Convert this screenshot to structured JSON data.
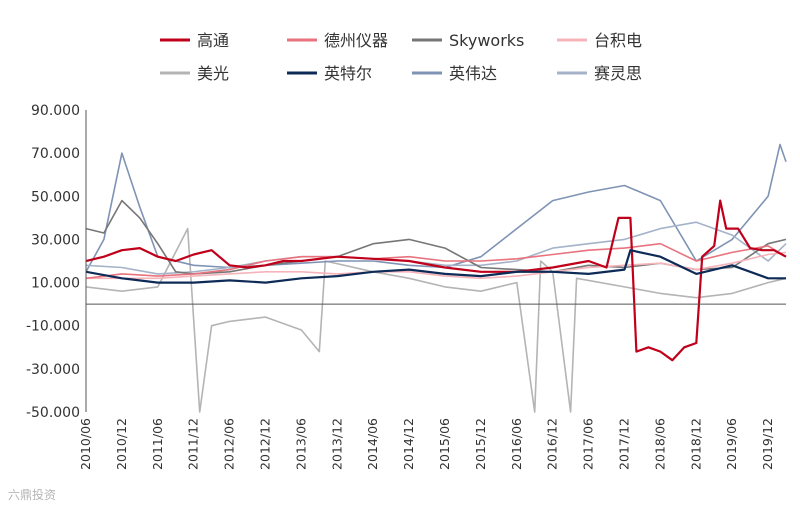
{
  "chart_data": {
    "type": "line",
    "title": "",
    "xlabel": "",
    "ylabel": "",
    "ylim": [
      -50,
      90
    ],
    "y_ticks": [
      "90.000",
      "70.000",
      "50.000",
      "30.000",
      "10.000",
      "-10.000",
      "-30.000",
      "-50.000"
    ],
    "y_tick_values": [
      90,
      70,
      50,
      30,
      10,
      -10,
      -30,
      -50
    ],
    "x_ticks": [
      "2010/06",
      "2010/12",
      "2011/06",
      "2011/12",
      "2012/06",
      "2012/12",
      "2013/06",
      "2013/12",
      "2014/06",
      "2014/12",
      "2015/06",
      "2015/12",
      "2016/06",
      "2016/12",
      "2017/06",
      "2017/12",
      "2018/06",
      "2018/12",
      "2019/06",
      "2019/12"
    ],
    "x_range": [
      "2010/06",
      "2020/03"
    ],
    "grid": false,
    "legend_position": "top",
    "series": [
      {
        "name": "高通",
        "color": "#c0001b",
        "width": 2.2,
        "points": [
          [
            "2010/06",
            20
          ],
          [
            "2010/09",
            22
          ],
          [
            "2010/12",
            25
          ],
          [
            "2011/03",
            26
          ],
          [
            "2011/06",
            22
          ],
          [
            "2011/09",
            20
          ],
          [
            "2011/12",
            23
          ],
          [
            "2012/03",
            25
          ],
          [
            "2012/06",
            18
          ],
          [
            "2012/09",
            17
          ],
          [
            "2012/12",
            18
          ],
          [
            "2013/03",
            20
          ],
          [
            "2013/06",
            20
          ],
          [
            "2013/12",
            22
          ],
          [
            "2014/06",
            21
          ],
          [
            "2014/12",
            20
          ],
          [
            "2015/06",
            17
          ],
          [
            "2015/12",
            15
          ],
          [
            "2016/06",
            15
          ],
          [
            "2016/12",
            17
          ],
          [
            "2017/06",
            20
          ],
          [
            "2017/09",
            17
          ],
          [
            "2017/11",
            40
          ],
          [
            "2018/01",
            40
          ],
          [
            "2018/02",
            -22
          ],
          [
            "2018/04",
            -20
          ],
          [
            "2018/06",
            -22
          ],
          [
            "2018/08",
            -26
          ],
          [
            "2018/10",
            -20
          ],
          [
            "2018/12",
            -18
          ],
          [
            "2019/01",
            22
          ],
          [
            "2019/03",
            27
          ],
          [
            "2019/04",
            48
          ],
          [
            "2019/05",
            35
          ],
          [
            "2019/07",
            35
          ],
          [
            "2019/09",
            26
          ],
          [
            "2019/11",
            25
          ],
          [
            "2020/01",
            25
          ],
          [
            "2020/03",
            22
          ]
        ]
      },
      {
        "name": "德州仪器",
        "color": "#e8737e",
        "width": 1.6,
        "points": [
          [
            "2010/06",
            12
          ],
          [
            "2010/12",
            14
          ],
          [
            "2011/06",
            13
          ],
          [
            "2011/12",
            14
          ],
          [
            "2012/06",
            16
          ],
          [
            "2012/12",
            20
          ],
          [
            "2013/06",
            22
          ],
          [
            "2013/12",
            22
          ],
          [
            "2014/06",
            21
          ],
          [
            "2014/12",
            22
          ],
          [
            "2015/06",
            20
          ],
          [
            "2015/12",
            20
          ],
          [
            "2016/06",
            21
          ],
          [
            "2016/12",
            23
          ],
          [
            "2017/06",
            25
          ],
          [
            "2017/12",
            26
          ],
          [
            "2018/06",
            28
          ],
          [
            "2018/12",
            20
          ],
          [
            "2019/06",
            24
          ],
          [
            "2019/12",
            27
          ],
          [
            "2020/03",
            22
          ]
        ]
      },
      {
        "name": "Skyworks",
        "color": "#767676",
        "width": 1.6,
        "points": [
          [
            "2010/06",
            35
          ],
          [
            "2010/09",
            33
          ],
          [
            "2010/12",
            48
          ],
          [
            "2011/03",
            40
          ],
          [
            "2011/06",
            28
          ],
          [
            "2011/09",
            15
          ],
          [
            "2011/12",
            14
          ],
          [
            "2012/06",
            15
          ],
          [
            "2012/12",
            18
          ],
          [
            "2013/06",
            20
          ],
          [
            "2013/12",
            22
          ],
          [
            "2014/06",
            28
          ],
          [
            "2014/12",
            30
          ],
          [
            "2015/06",
            26
          ],
          [
            "2015/12",
            17
          ],
          [
            "2016/06",
            16
          ],
          [
            "2016/12",
            15
          ],
          [
            "2017/06",
            18
          ],
          [
            "2017/12",
            17
          ],
          [
            "2018/06",
            19
          ],
          [
            "2018/12",
            16
          ],
          [
            "2019/06",
            17
          ],
          [
            "2019/12",
            28
          ],
          [
            "2020/03",
            30
          ]
        ]
      },
      {
        "name": "台积电",
        "color": "#f6b3ba",
        "width": 1.6,
        "points": [
          [
            "2010/06",
            12
          ],
          [
            "2010/12",
            12
          ],
          [
            "2011/06",
            12
          ],
          [
            "2011/12",
            13
          ],
          [
            "2012/06",
            14
          ],
          [
            "2012/12",
            15
          ],
          [
            "2013/06",
            15
          ],
          [
            "2013/12",
            14
          ],
          [
            "2014/06",
            15
          ],
          [
            "2014/12",
            15
          ],
          [
            "2015/06",
            13
          ],
          [
            "2015/12",
            12
          ],
          [
            "2016/06",
            13
          ],
          [
            "2016/12",
            15
          ],
          [
            "2017/06",
            17
          ],
          [
            "2017/12",
            18
          ],
          [
            "2018/06",
            19
          ],
          [
            "2018/12",
            16
          ],
          [
            "2019/06",
            19
          ],
          [
            "2019/12",
            23
          ],
          [
            "2020/03",
            24
          ]
        ]
      },
      {
        "name": "美光",
        "color": "#b4b4b4",
        "width": 1.6,
        "points": [
          [
            "2010/06",
            8
          ],
          [
            "2010/12",
            6
          ],
          [
            "2011/06",
            8
          ],
          [
            "2011/11",
            35
          ],
          [
            "2012/01",
            -50
          ],
          [
            "2012/03",
            -10
          ],
          [
            "2012/06",
            -8
          ],
          [
            "2012/12",
            -6
          ],
          [
            "2013/06",
            -12
          ],
          [
            "2013/09",
            -22
          ],
          [
            "2013/10",
            20
          ],
          [
            "2014/06",
            15
          ],
          [
            "2014/12",
            12
          ],
          [
            "2015/06",
            8
          ],
          [
            "2015/12",
            6
          ],
          [
            "2016/06",
            10
          ],
          [
            "2016/09",
            -50
          ],
          [
            "2016/10",
            20
          ],
          [
            "2016/12",
            15
          ],
          [
            "2017/03",
            -50
          ],
          [
            "2017/04",
            12
          ],
          [
            "2017/12",
            8
          ],
          [
            "2018/06",
            5
          ],
          [
            "2018/12",
            3
          ],
          [
            "2019/06",
            5
          ],
          [
            "2019/12",
            10
          ],
          [
            "2020/03",
            12
          ]
        ]
      },
      {
        "name": "英特尔",
        "color": "#0d2b56",
        "width": 2.2,
        "points": [
          [
            "2010/06",
            15
          ],
          [
            "2010/12",
            12
          ],
          [
            "2011/06",
            10
          ],
          [
            "2011/12",
            10
          ],
          [
            "2012/06",
            11
          ],
          [
            "2012/12",
            10
          ],
          [
            "2013/06",
            12
          ],
          [
            "2013/12",
            13
          ],
          [
            "2014/06",
            15
          ],
          [
            "2014/12",
            16
          ],
          [
            "2015/06",
            14
          ],
          [
            "2015/12",
            13
          ],
          [
            "2016/06",
            15
          ],
          [
            "2016/12",
            15
          ],
          [
            "2017/06",
            14
          ],
          [
            "2017/12",
            16
          ],
          [
            "2018/01",
            25
          ],
          [
            "2018/06",
            22
          ],
          [
            "2018/12",
            14
          ],
          [
            "2019/06",
            18
          ],
          [
            "2019/12",
            12
          ],
          [
            "2020/03",
            12
          ]
        ]
      },
      {
        "name": "英伟达",
        "color": "#7f93b4",
        "width": 1.6,
        "points": [
          [
            "2010/06",
            15
          ],
          [
            "2010/09",
            30
          ],
          [
            "2010/12",
            70
          ],
          [
            "2011/03",
            45
          ],
          [
            "2011/06",
            22
          ],
          [
            "2011/12",
            18
          ],
          [
            "2012/06",
            17
          ],
          [
            "2012/12",
            18
          ],
          [
            "2013/06",
            19
          ],
          [
            "2013/12",
            20
          ],
          [
            "2014/06",
            20
          ],
          [
            "2014/12",
            18
          ],
          [
            "2015/06",
            17
          ],
          [
            "2015/12",
            22
          ],
          [
            "2016/06",
            35
          ],
          [
            "2016/12",
            48
          ],
          [
            "2017/06",
            52
          ],
          [
            "2017/12",
            55
          ],
          [
            "2018/06",
            48
          ],
          [
            "2018/12",
            20
          ],
          [
            "2019/06",
            30
          ],
          [
            "2019/12",
            50
          ],
          [
            "2020/02",
            74
          ],
          [
            "2020/03",
            66
          ]
        ]
      },
      {
        "name": "赛灵思",
        "color": "#a5b3c8",
        "width": 1.6,
        "points": [
          [
            "2010/06",
            18
          ],
          [
            "2010/12",
            17
          ],
          [
            "2011/06",
            14
          ],
          [
            "2011/12",
            15
          ],
          [
            "2012/06",
            17
          ],
          [
            "2012/12",
            20
          ],
          [
            "2013/06",
            22
          ],
          [
            "2013/12",
            22
          ],
          [
            "2014/06",
            21
          ],
          [
            "2014/12",
            20
          ],
          [
            "2015/06",
            18
          ],
          [
            "2015/12",
            18
          ],
          [
            "2016/06",
            20
          ],
          [
            "2016/12",
            26
          ],
          [
            "2017/06",
            28
          ],
          [
            "2017/12",
            30
          ],
          [
            "2018/06",
            35
          ],
          [
            "2018/12",
            38
          ],
          [
            "2019/06",
            32
          ],
          [
            "2019/12",
            20
          ],
          [
            "2020/03",
            28
          ]
        ]
      }
    ]
  },
  "watermark": "六鼎投资"
}
